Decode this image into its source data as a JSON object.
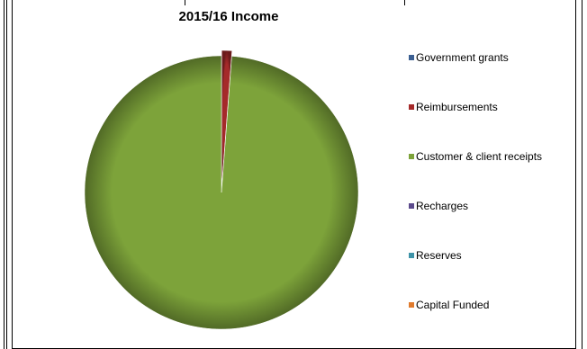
{
  "chart_data": {
    "type": "pie",
    "title": "2015/16 Income",
    "categories": [
      "Government grants",
      "Reimbursements",
      "Customer & client receipts",
      "Recharges",
      "Reserves",
      "Capital Funded"
    ],
    "values": [
      0,
      1.2,
      98.8,
      0,
      0,
      0
    ],
    "colors": [
      "#3B5F92",
      "#A52A2A",
      "#7DA33A",
      "#5B4A8C",
      "#3E93A8",
      "#E07B2E"
    ],
    "legend_position": "right"
  }
}
